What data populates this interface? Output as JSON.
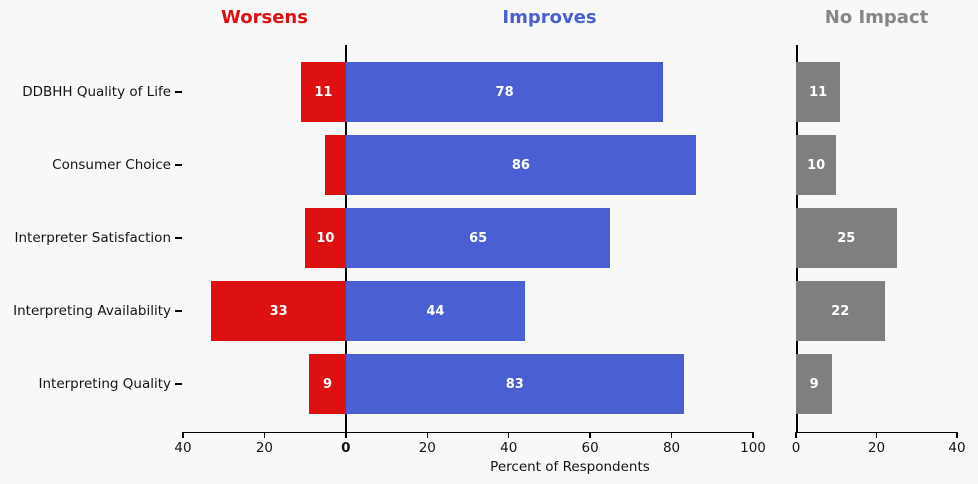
{
  "figure": {
    "background": "#f8f8f8",
    "column_titles": {
      "worsens": "Worsens",
      "improves": "Improves",
      "no_impact": "No Impact"
    },
    "title_colors": {
      "worsens": "#dd1111",
      "improves": "#4a5fd2",
      "no_impact": "#868686"
    }
  },
  "chart_data": {
    "type": "bar",
    "orientation": "horizontal-diverging",
    "xlabel": "Percent of Respondents",
    "categories": [
      "DDBHH Quality of Life",
      "Consumer Choice",
      "Interpreter Satisfaction",
      "Interpreting Availability",
      "Interpreting Quality"
    ],
    "series": [
      {
        "name": "Worsens",
        "panel": "main",
        "direction": "left",
        "color": "#dd1111",
        "values": [
          11,
          5,
          10,
          33,
          9
        ],
        "bar_labels": [
          "11",
          "",
          "10",
          "33",
          "9"
        ]
      },
      {
        "name": "Improves",
        "panel": "main",
        "direction": "right",
        "color": "#4a5fd2",
        "values": [
          78,
          86,
          65,
          44,
          83
        ],
        "bar_labels": [
          "78",
          "86",
          "65",
          "44",
          "83"
        ]
      },
      {
        "name": "No Impact",
        "panel": "right",
        "direction": "right",
        "color": "#7f7f7f",
        "values": [
          11,
          10,
          25,
          22,
          9
        ],
        "bar_labels": [
          "11",
          "10",
          "25",
          "22",
          "9"
        ]
      }
    ],
    "bar_label_color": "#ffffff",
    "main_axis": {
      "range": [
        -40,
        100
      ],
      "tick_values": [
        -40,
        -20,
        0,
        20,
        40,
        60,
        80,
        100
      ],
      "tick_labels": [
        "40",
        "20",
        "0",
        "20",
        "40",
        "60",
        "80",
        "100"
      ],
      "bold_tick_label": "0"
    },
    "right_axis": {
      "range": [
        0,
        40
      ],
      "tick_values": [
        0,
        20,
        40
      ],
      "tick_labels": [
        "0",
        "20",
        "40"
      ]
    },
    "grid": false,
    "legend_position": "column-titles"
  }
}
